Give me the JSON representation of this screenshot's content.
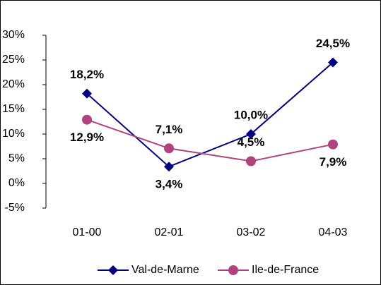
{
  "chart_data": {
    "type": "line",
    "categories": [
      "01-00",
      "02-01",
      "03-02",
      "04-03"
    ],
    "series": [
      {
        "name": "Val-de-Marne",
        "color": "#000080",
        "marker": "diamond",
        "values": [
          18.2,
          3.4,
          10.0,
          24.5
        ],
        "value_labels": [
          "18,2%",
          "3,4%",
          "10,0%",
          "24,5%"
        ]
      },
      {
        "name": "Ile-de-France",
        "color": "#b0427e",
        "marker": "circle",
        "values": [
          12.9,
          7.1,
          4.5,
          7.9
        ],
        "value_labels": [
          "12,9%",
          "7,1%",
          "4,5%",
          "7,9%"
        ]
      }
    ],
    "ylim": [
      -5,
      30
    ],
    "yticks": [
      {
        "value": -5,
        "label": "-5%"
      },
      {
        "value": 0,
        "label": "0%"
      },
      {
        "value": 5,
        "label": "5%"
      },
      {
        "value": 10,
        "label": "10%"
      },
      {
        "value": 15,
        "label": "15%"
      },
      {
        "value": 20,
        "label": "20%"
      },
      {
        "value": 25,
        "label": "25%"
      },
      {
        "value": 30,
        "label": "30%"
      }
    ],
    "grid": false,
    "legend": "bottom"
  }
}
